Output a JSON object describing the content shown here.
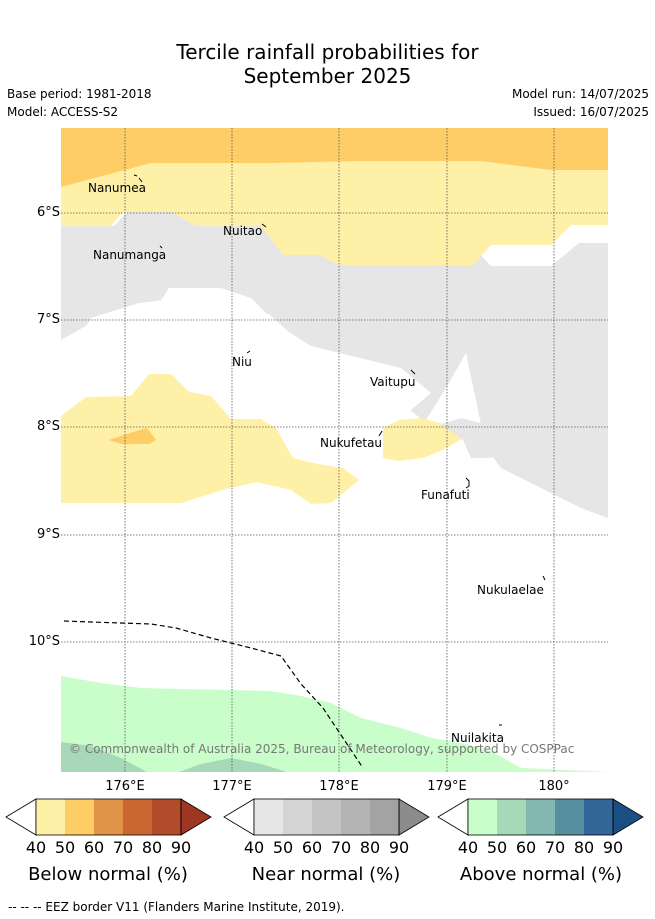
{
  "header": {
    "title_line1": "Tercile rainfall probabilities for",
    "title_line2": "September 2025",
    "base_period": "Base period: 1981-2018",
    "model": "Model: ACCESS-S2",
    "model_run": "Model run: 14/07/2025",
    "issued": "Issued: 16/07/2025"
  },
  "map": {
    "lat_labels": [
      "6°S",
      "7°S",
      "8°S",
      "9°S",
      "10°S"
    ],
    "lon_labels": [
      "176°E",
      "177°E",
      "178°E",
      "179°E",
      "180°"
    ],
    "islands": [
      "Nanumea",
      "Nuitao",
      "Nanumanga",
      "Niu",
      "Vaitupu",
      "Nukufetau",
      "Funafuti",
      "Nukulaelae",
      "Nuilakita"
    ],
    "copyright": "© Commonwealth of Australia 2025, Bureau of Meteorology, supported by COSPPac",
    "eez_style": "dashed"
  },
  "colorbars": {
    "ticks": [
      "40",
      "50",
      "60",
      "70",
      "80",
      "90"
    ],
    "below": {
      "title": "Below normal (%)",
      "colors": [
        "#ffffff",
        "#fff0a8",
        "#ffcd66",
        "#e0944a",
        "#cc6633",
        "#b14b2a",
        "#9e3624"
      ]
    },
    "near": {
      "title": "Near normal (%)",
      "colors": [
        "#ffffff",
        "#e6e6e6",
        "#d4d4d4",
        "#c4c4c4",
        "#b4b4b4",
        "#a3a3a3",
        "#8c8c8c"
      ]
    },
    "above": {
      "title": "Above normal (%)",
      "colors": [
        "#ffffff",
        "#c9fdc9",
        "#a7d8b8",
        "#82b8b0",
        "#56909e",
        "#336699",
        "#1a4e85"
      ]
    }
  },
  "footnote": "--  --  -- EEZ border V11 (Flanders Marine Institute, 2019)."
}
